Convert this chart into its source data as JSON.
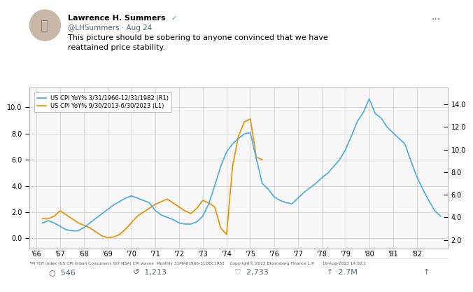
{
  "legend_blue": "US CPI YoY% 3/31/1966-12/31/1982 (R1)",
  "legend_orange": "US CPI YoY% 9/30/2013-6/30/2023 (L1)",
  "footnote": "*PI YOY Index (US CPI Urban Consumers YoY NSA) CPI waves  Monthly 31MAR1966-31DEC1982    Copyright© 2023 Bloomberg Finance L.P.      10-Aug-2023 14:00:1",
  "blue_color": "#5aade0",
  "orange_color": "#e8960a",
  "bg_color": "#ffffff",
  "chart_bg": "#f7f7f7",
  "grid_color": "#cccccc",
  "left_ylim": [
    -0.8,
    11.5
  ],
  "right_ylim": [
    1.2,
    15.5
  ],
  "xticks": [
    1966,
    1967,
    1968,
    1969,
    1970,
    1971,
    1972,
    1973,
    1974,
    1975,
    1976,
    1977,
    1978,
    1979,
    1980,
    1981,
    1982
  ],
  "xtick_labels": [
    "'66",
    "'67",
    "'68",
    "'69",
    "'70",
    "'71",
    "'72",
    "'73",
    "'74",
    "'75",
    "'76",
    "'77",
    "'78",
    "'79",
    "'80",
    "'81",
    "'82"
  ],
  "left_yticks": [
    0.0,
    2.0,
    4.0,
    6.0,
    8.0,
    10.0
  ],
  "right_yticks": [
    2.0,
    4.0,
    6.0,
    8.0,
    10.0,
    12.0,
    14.0
  ],
  "blue_x": [
    1966.25,
    1966.5,
    1966.75,
    1967.0,
    1967.25,
    1967.5,
    1967.75,
    1968.0,
    1968.25,
    1968.5,
    1968.75,
    1969.0,
    1969.25,
    1969.5,
    1969.75,
    1970.0,
    1970.25,
    1970.5,
    1970.75,
    1971.0,
    1971.25,
    1971.5,
    1971.75,
    1972.0,
    1972.25,
    1972.5,
    1972.75,
    1973.0,
    1973.25,
    1973.5,
    1973.75,
    1974.0,
    1974.25,
    1974.5,
    1974.75,
    1975.0,
    1975.25,
    1975.5,
    1975.75,
    1976.0,
    1976.25,
    1976.5,
    1976.75,
    1977.0,
    1977.25,
    1977.5,
    1977.75,
    1978.0,
    1978.25,
    1978.5,
    1978.75,
    1979.0,
    1979.25,
    1979.5,
    1979.75,
    1980.0,
    1980.25,
    1980.5,
    1980.75,
    1981.0,
    1981.25,
    1981.5,
    1981.75,
    1982.0,
    1982.25,
    1982.5,
    1982.75,
    1983.0
  ],
  "blue_y": [
    3.5,
    3.7,
    3.5,
    3.2,
    2.9,
    2.8,
    2.8,
    3.1,
    3.5,
    3.9,
    4.3,
    4.7,
    5.1,
    5.4,
    5.7,
    5.9,
    5.7,
    5.5,
    5.3,
    4.6,
    4.2,
    4.0,
    3.8,
    3.5,
    3.4,
    3.4,
    3.6,
    4.1,
    5.2,
    6.8,
    8.5,
    9.8,
    10.5,
    11.0,
    11.4,
    11.5,
    9.2,
    7.0,
    6.5,
    5.8,
    5.5,
    5.3,
    5.2,
    5.7,
    6.2,
    6.6,
    7.0,
    7.5,
    7.9,
    8.5,
    9.1,
    10.0,
    11.2,
    12.5,
    13.3,
    14.5,
    13.2,
    12.8,
    12.0,
    11.5,
    11.0,
    10.5,
    9.0,
    7.6,
    6.5,
    5.5,
    4.6,
    4.1
  ],
  "orange_x": [
    1966.25,
    1966.5,
    1966.75,
    1967.0,
    1967.25,
    1967.5,
    1967.75,
    1968.0,
    1968.25,
    1968.5,
    1968.75,
    1969.0,
    1969.25,
    1969.5,
    1969.75,
    1970.0,
    1970.25,
    1970.5,
    1970.75,
    1971.0,
    1971.25,
    1971.5,
    1971.75,
    1972.0,
    1972.25,
    1972.5,
    1972.75,
    1973.0,
    1973.25,
    1973.5,
    1973.75,
    1974.0,
    1974.25,
    1974.5,
    1974.75,
    1975.0,
    1975.25,
    1975.5
  ],
  "orange_y": [
    1.5,
    1.5,
    1.7,
    2.1,
    1.8,
    1.5,
    1.2,
    1.0,
    0.8,
    0.5,
    0.2,
    0.05,
    0.1,
    0.3,
    0.7,
    1.2,
    1.7,
    2.0,
    2.3,
    2.6,
    2.8,
    3.0,
    2.7,
    2.4,
    2.1,
    1.9,
    2.3,
    2.9,
    2.7,
    2.4,
    0.8,
    0.3,
    5.5,
    7.8,
    8.9,
    9.1,
    6.2,
    6.0
  ],
  "twitter_name": "Lawrence H. Summers",
  "twitter_handle": "@LHSummers · Aug 24",
  "twitter_text1": "This picture should be sobering to anyone convinced that we have",
  "twitter_text2": "reattained price stability.",
  "avatar_color": "#cccccc",
  "bottom_icons": [
    "546",
    "1,213",
    "2,733",
    "2.7M"
  ]
}
